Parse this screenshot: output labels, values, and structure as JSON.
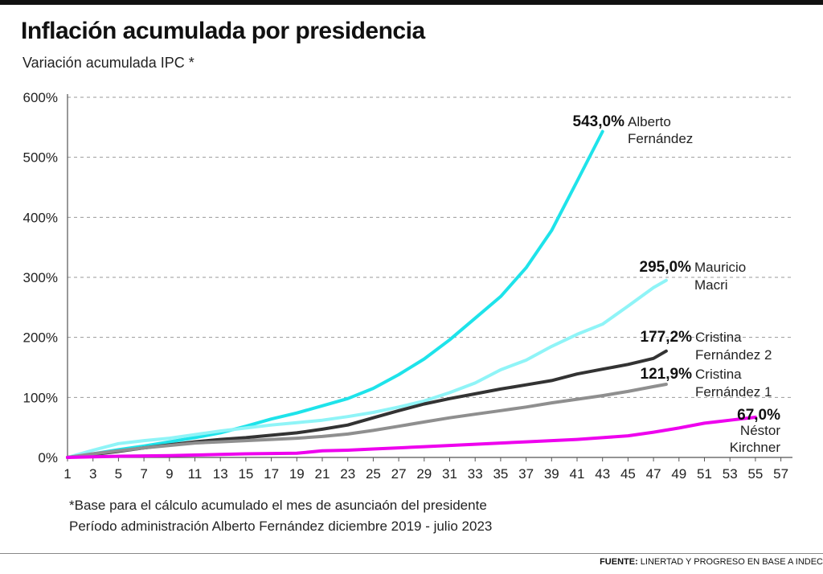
{
  "header": {
    "title": "Inflación acumulada por presidencia",
    "subtitle": "Variación acumulada IPC *"
  },
  "footer": {
    "note_1": "*Base para el cálculo acumulado el mes de asunciaón del presidente",
    "note_2": "Período administración Alberto Fernández diciembre 2019 - julio 2023",
    "source_label": "FUENTE:",
    "source_text": "LINERTAD Y PROGRESO EN BASE A INDEC"
  },
  "chart_data": {
    "type": "line",
    "title": "Inflación acumulada por presidencia",
    "subtitle": "Variación acumulada IPC *",
    "xlabel": "",
    "ylabel": "",
    "xlim": [
      1,
      58
    ],
    "ylim": [
      0,
      600
    ],
    "x_ticks": [
      1,
      3,
      5,
      7,
      9,
      11,
      13,
      15,
      17,
      19,
      21,
      23,
      25,
      27,
      29,
      31,
      33,
      35,
      37,
      39,
      41,
      43,
      45,
      47,
      49,
      51,
      53,
      55,
      57
    ],
    "y_ticks": [
      0,
      100,
      200,
      300,
      400,
      500,
      600
    ],
    "y_tick_labels": [
      "0%",
      "100%",
      "200%",
      "300%",
      "400%",
      "500%",
      "600%"
    ],
    "grid": "horizontal dashed",
    "legend": "none (series labelled at line ends)",
    "series": [
      {
        "name": "Alberto Fernández",
        "end_value_label": "543,0%",
        "name_line_1": "Alberto",
        "name_line_2": "Fernández",
        "color": "#1ee3ea",
        "x": [
          1,
          3,
          5,
          7,
          9,
          11,
          13,
          15,
          17,
          19,
          21,
          23,
          25,
          27,
          29,
          31,
          33,
          35,
          37,
          39,
          41,
          43
        ],
        "y": [
          0,
          6,
          13,
          19,
          26,
          33,
          41,
          52,
          64,
          74,
          86,
          98,
          115,
          138,
          164,
          196,
          232,
          268,
          316,
          378,
          460,
          543
        ]
      },
      {
        "name": "Mauricio Macri",
        "end_value_label": "295,0%",
        "name_line_1": "Mauricio",
        "name_line_2": "Macri",
        "color": "#8ff4f7",
        "x": [
          1,
          3,
          5,
          7,
          9,
          11,
          13,
          15,
          17,
          19,
          21,
          23,
          25,
          27,
          29,
          31,
          33,
          35,
          37,
          39,
          41,
          43,
          45,
          47,
          48
        ],
        "y": [
          0,
          12,
          23,
          28,
          32,
          38,
          44,
          49,
          54,
          58,
          62,
          68,
          75,
          84,
          94,
          108,
          124,
          146,
          162,
          185,
          205,
          222,
          252,
          283,
          295
        ]
      },
      {
        "name": "Cristina Fernández 2",
        "end_value_label": "177,2%",
        "name_line_1": "Cristina",
        "name_line_2": "Fernández 2",
        "color": "#333333",
        "x": [
          1,
          3,
          5,
          7,
          9,
          11,
          13,
          15,
          17,
          19,
          21,
          23,
          25,
          27,
          29,
          31,
          33,
          35,
          37,
          39,
          41,
          43,
          45,
          47,
          48
        ],
        "y": [
          0,
          5,
          10,
          16,
          21,
          26,
          30,
          33,
          37,
          41,
          47,
          54,
          66,
          78,
          89,
          98,
          106,
          114,
          121,
          128,
          139,
          147,
          155,
          165,
          177.2
        ]
      },
      {
        "name": "Cristina Fernández 1",
        "end_value_label": "121,9%",
        "name_line_1": "Cristina",
        "name_line_2": "Fernández 1",
        "color": "#8f8f8f",
        "x": [
          1,
          3,
          5,
          7,
          9,
          11,
          13,
          15,
          17,
          19,
          21,
          23,
          25,
          27,
          29,
          31,
          33,
          35,
          37,
          39,
          41,
          43,
          45,
          47,
          48
        ],
        "y": [
          0,
          6,
          11,
          16,
          20,
          24,
          26,
          28,
          30,
          32,
          35,
          39,
          45,
          52,
          59,
          66,
          72,
          78,
          84,
          91,
          97,
          103,
          110,
          118,
          121.9
        ]
      },
      {
        "name": "Néstor Kirchner",
        "end_value_label": "67,0%",
        "name_line_1": "Néstor",
        "name_line_2": "Kirchner",
        "color": "#ee00ee",
        "x": [
          1,
          3,
          5,
          7,
          9,
          11,
          13,
          15,
          17,
          19,
          21,
          23,
          25,
          27,
          29,
          31,
          33,
          35,
          37,
          39,
          41,
          43,
          45,
          47,
          49,
          51,
          53,
          55
        ],
        "y": [
          0,
          1,
          2,
          2.5,
          3,
          4,
          5,
          6,
          6.5,
          7,
          11,
          12,
          14,
          16,
          18,
          20,
          22,
          24,
          26,
          28,
          30,
          33,
          36,
          42,
          49,
          57,
          62,
          67
        ]
      }
    ]
  }
}
